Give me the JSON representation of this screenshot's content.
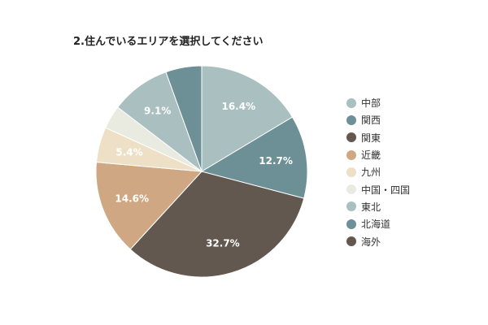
{
  "chart_data": {
    "type": "pie",
    "title": "2.住んでいるエリアを選択してください",
    "slices": [
      {
        "label": "中部",
        "value": 16.4,
        "color": "#a9bfc0",
        "show_label": true,
        "label_color": "#ffffff"
      },
      {
        "label": "関西",
        "value": 12.7,
        "color": "#6d8f96",
        "show_label": true,
        "label_color": "#ffffff"
      },
      {
        "label": "関東",
        "value": 32.7,
        "color": "#625850",
        "show_label": true,
        "label_color": "#ffffff"
      },
      {
        "label": "近畿",
        "value": 14.6,
        "color": "#cfa883",
        "show_label": true,
        "label_color": "#ffffff"
      },
      {
        "label": "九州",
        "value": 5.4,
        "color": "#ede0c6",
        "show_label": true,
        "label_color": "#ffffff"
      },
      {
        "label": "中国・四国",
        "value": 3.6,
        "color": "#e9ebe1",
        "show_label": false,
        "label_color": "#ffffff"
      },
      {
        "label": "東北",
        "value": 9.1,
        "color": "#a9bfc0",
        "show_label": true,
        "label_color": "#ffffff"
      },
      {
        "label": "北海道",
        "value": 5.5,
        "color": "#6d8f96",
        "show_label": false,
        "label_color": "#ffffff"
      },
      {
        "label": "海外",
        "value": 0,
        "color": "#625850",
        "show_label": false,
        "label_color": "#ffffff"
      }
    ],
    "legend_position": "right",
    "value_format": "percent-1-decimal"
  }
}
